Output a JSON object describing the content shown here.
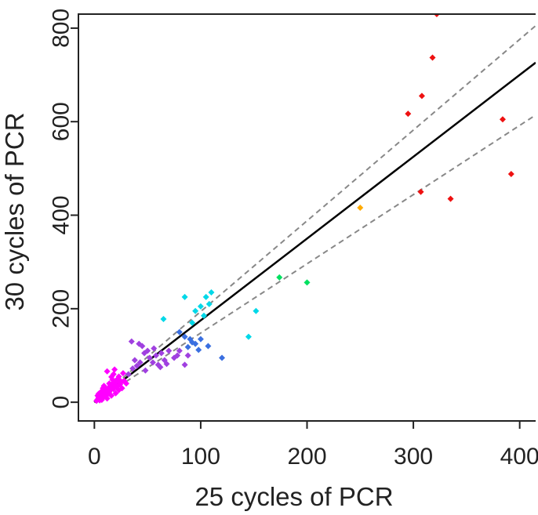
{
  "chart_data": {
    "type": "scatter",
    "title": "",
    "xlabel": "25 cycles of PCR",
    "ylabel": "30 cycles of PCR",
    "xlim": [
      -15,
      415
    ],
    "ylim": [
      -40,
      830
    ],
    "xticks": [
      0,
      100,
      200,
      300,
      400
    ],
    "yticks": [
      0,
      200,
      400,
      600,
      800
    ],
    "fit_line": {
      "slope": 1.75,
      "intercept": 0,
      "color": "#000000"
    },
    "confidence_lines": [
      {
        "slope": 1.94,
        "intercept": 0,
        "color": "#888888"
      },
      {
        "slope": 1.48,
        "intercept": 0,
        "color": "#888888"
      }
    ],
    "series": [
      {
        "name": "magenta",
        "color": "#ff00ff",
        "points": [
          [
            2,
            3
          ],
          [
            3,
            6
          ],
          [
            4,
            10
          ],
          [
            5,
            4
          ],
          [
            6,
            15
          ],
          [
            7,
            9
          ],
          [
            8,
            20
          ],
          [
            9,
            12
          ],
          [
            10,
            25
          ],
          [
            11,
            18
          ],
          [
            12,
            8
          ],
          [
            13,
            30
          ],
          [
            14,
            22
          ],
          [
            15,
            35
          ],
          [
            16,
            14
          ],
          [
            17,
            40
          ],
          [
            18,
            28
          ],
          [
            19,
            45
          ],
          [
            20,
            19
          ],
          [
            21,
            33
          ],
          [
            22,
            50
          ],
          [
            23,
            26
          ],
          [
            24,
            38
          ],
          [
            25,
            42
          ],
          [
            6,
            22
          ],
          [
            8,
            30
          ],
          [
            10,
            16
          ],
          [
            12,
            24
          ],
          [
            14,
            40
          ],
          [
            16,
            54
          ],
          [
            18,
            60
          ],
          [
            20,
            36
          ],
          [
            9,
            35
          ],
          [
            11,
            28
          ],
          [
            5,
            12
          ],
          [
            7,
            5
          ],
          [
            13,
            18
          ],
          [
            15,
            26
          ],
          [
            17,
            48
          ],
          [
            19,
            32
          ],
          [
            21,
            44
          ],
          [
            23,
            55
          ],
          [
            26,
            30
          ],
          [
            28,
            46
          ],
          [
            30,
            40
          ],
          [
            27,
            62
          ],
          [
            12,
            66
          ],
          [
            19,
            70
          ],
          [
            4,
            18
          ],
          [
            3,
            14
          ],
          [
            24,
            47
          ],
          [
            16,
            33
          ]
        ]
      },
      {
        "name": "violet",
        "color": "#a040e0",
        "points": [
          [
            35,
            130
          ],
          [
            42,
            125
          ],
          [
            47,
            105
          ],
          [
            50,
            110
          ],
          [
            55,
            85
          ],
          [
            58,
            100
          ],
          [
            60,
            80
          ],
          [
            62,
            75
          ],
          [
            66,
            90
          ],
          [
            68,
            82
          ],
          [
            70,
            110
          ],
          [
            75,
            95
          ],
          [
            78,
            100
          ],
          [
            80,
            110
          ],
          [
            85,
            80
          ],
          [
            88,
            100
          ],
          [
            38,
            90
          ],
          [
            45,
            120
          ],
          [
            52,
            95
          ],
          [
            40,
            78
          ],
          [
            43,
            85
          ],
          [
            48,
            68
          ],
          [
            32,
            60
          ],
          [
            36,
            72
          ],
          [
            56,
            115
          ],
          [
            63,
            105
          ]
        ]
      },
      {
        "name": "blue",
        "color": "#3a6fe0",
        "points": [
          [
            80,
            150
          ],
          [
            85,
            140
          ],
          [
            90,
            135
          ],
          [
            95,
            125
          ],
          [
            100,
            135
          ],
          [
            107,
            120
          ],
          [
            120,
            95
          ],
          [
            92,
            128
          ],
          [
            88,
            118
          ],
          [
            98,
            112
          ]
        ]
      },
      {
        "name": "cyan",
        "color": "#00d8e8",
        "points": [
          [
            65,
            178
          ],
          [
            85,
            225
          ],
          [
            92,
            170
          ],
          [
            95,
            195
          ],
          [
            100,
            205
          ],
          [
            103,
            185
          ],
          [
            105,
            225
          ],
          [
            108,
            210
          ],
          [
            110,
            235
          ],
          [
            145,
            140
          ],
          [
            152,
            195
          ]
        ]
      },
      {
        "name": "green",
        "color": "#00e060",
        "points": [
          [
            174,
            267
          ],
          [
            200,
            256
          ]
        ]
      },
      {
        "name": "orange",
        "color": "#ffaa00",
        "points": [
          [
            250,
            416
          ]
        ]
      },
      {
        "name": "red",
        "color": "#ee1111",
        "points": [
          [
            295,
            617
          ],
          [
            307,
            450
          ],
          [
            308,
            655
          ],
          [
            318,
            737
          ],
          [
            322,
            830
          ],
          [
            335,
            435
          ],
          [
            384,
            605
          ],
          [
            392,
            488
          ]
        ]
      }
    ]
  }
}
